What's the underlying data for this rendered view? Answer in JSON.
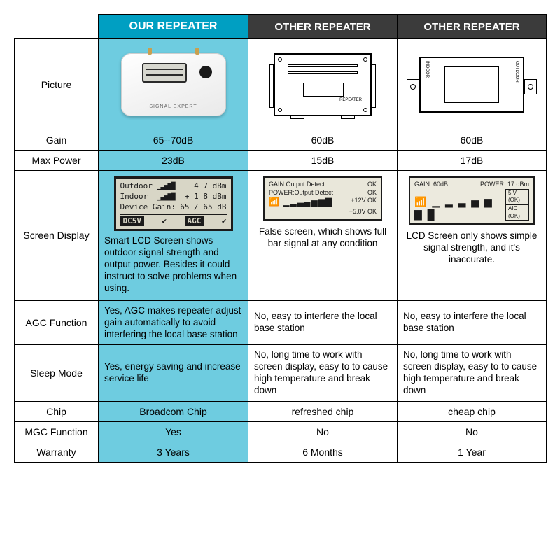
{
  "headers": {
    "our": "OUR REPEATER",
    "other1": "OTHER REPEATER",
    "other2": "OTHER REPEATER"
  },
  "rows": {
    "picture": "Picture",
    "gain": "Gain",
    "maxpower": "Max Power",
    "screen": "Screen Display",
    "agc": "AGC Function",
    "sleep": "Sleep Mode",
    "chip": "Chip",
    "mgc": "MGC Function",
    "warranty": "Warranty"
  },
  "gain": {
    "our": "65--70dB",
    "o1": "60dB",
    "o2": "60dB"
  },
  "maxpower": {
    "our": "23dB",
    "o1": "15dB",
    "o2": "17dB"
  },
  "lcd_our": {
    "outdoor_label": "Outdoor",
    "outdoor_val": "− 4 7 dBm",
    "indoor_label": "Indoor",
    "indoor_val": "+ 1 8 dBm",
    "devgain_label": "Device Gain:",
    "devgain_val": "65 / 65 dB",
    "dc": "DC5V",
    "agc": "AGC"
  },
  "lcd_mid": {
    "l1a": "GAIN:Output Detect",
    "l1b": "OK",
    "l2a": "POWER:Output Detect",
    "l2b": "OK",
    "l3a": "+12V",
    "l3b": "OK",
    "l4a": "+5.0V",
    "l4b": "OK"
  },
  "lcd_sm": {
    "gain": "GAIN: 60dB",
    "power": "POWER: 17 dBm",
    "b1": "5 V  (OK)",
    "b2": "AIC (OK)"
  },
  "screen_desc": {
    "our": "Smart LCD Screen shows outdoor signal strength and output power. Besides it could instruct to solve problems when using.",
    "o1": "False screen, which shows full bar signal at any condition",
    "o2": "LCD Screen only shows simple signal strength, and it's inaccurate."
  },
  "agc": {
    "our": "Yes, AGC makes repeater adjust gain automatically to avoid interfering the local base station",
    "o1": "No, easy to interfere the local base station",
    "o2": "No, easy to interfere the local base station"
  },
  "sleep": {
    "our": "Yes, energy saving and increase service life",
    "o1": "No, long time to work with screen display, easy to to cause high temperature and break down",
    "o2": "No, long time to work with screen display, easy to to cause high temperature and break down"
  },
  "chip": {
    "our": "Broadcom Chip",
    "o1": "refreshed chip",
    "o2": "cheap chip"
  },
  "mgc": {
    "our": "Yes",
    "o1": "No",
    "o2": "No"
  },
  "warranty": {
    "our": "3 Years",
    "o1": "6 Months",
    "o2": "1 Year"
  },
  "device_label": "SIGNAL EXPERT",
  "device_tag": "REPEATER",
  "slim_l": "INDOOR",
  "slim_r": "OUTDOOR",
  "colors": {
    "our_header": "#009fc2",
    "other_header": "#3b3b3b",
    "our_cell": "#6ecce0",
    "border": "#000000"
  }
}
